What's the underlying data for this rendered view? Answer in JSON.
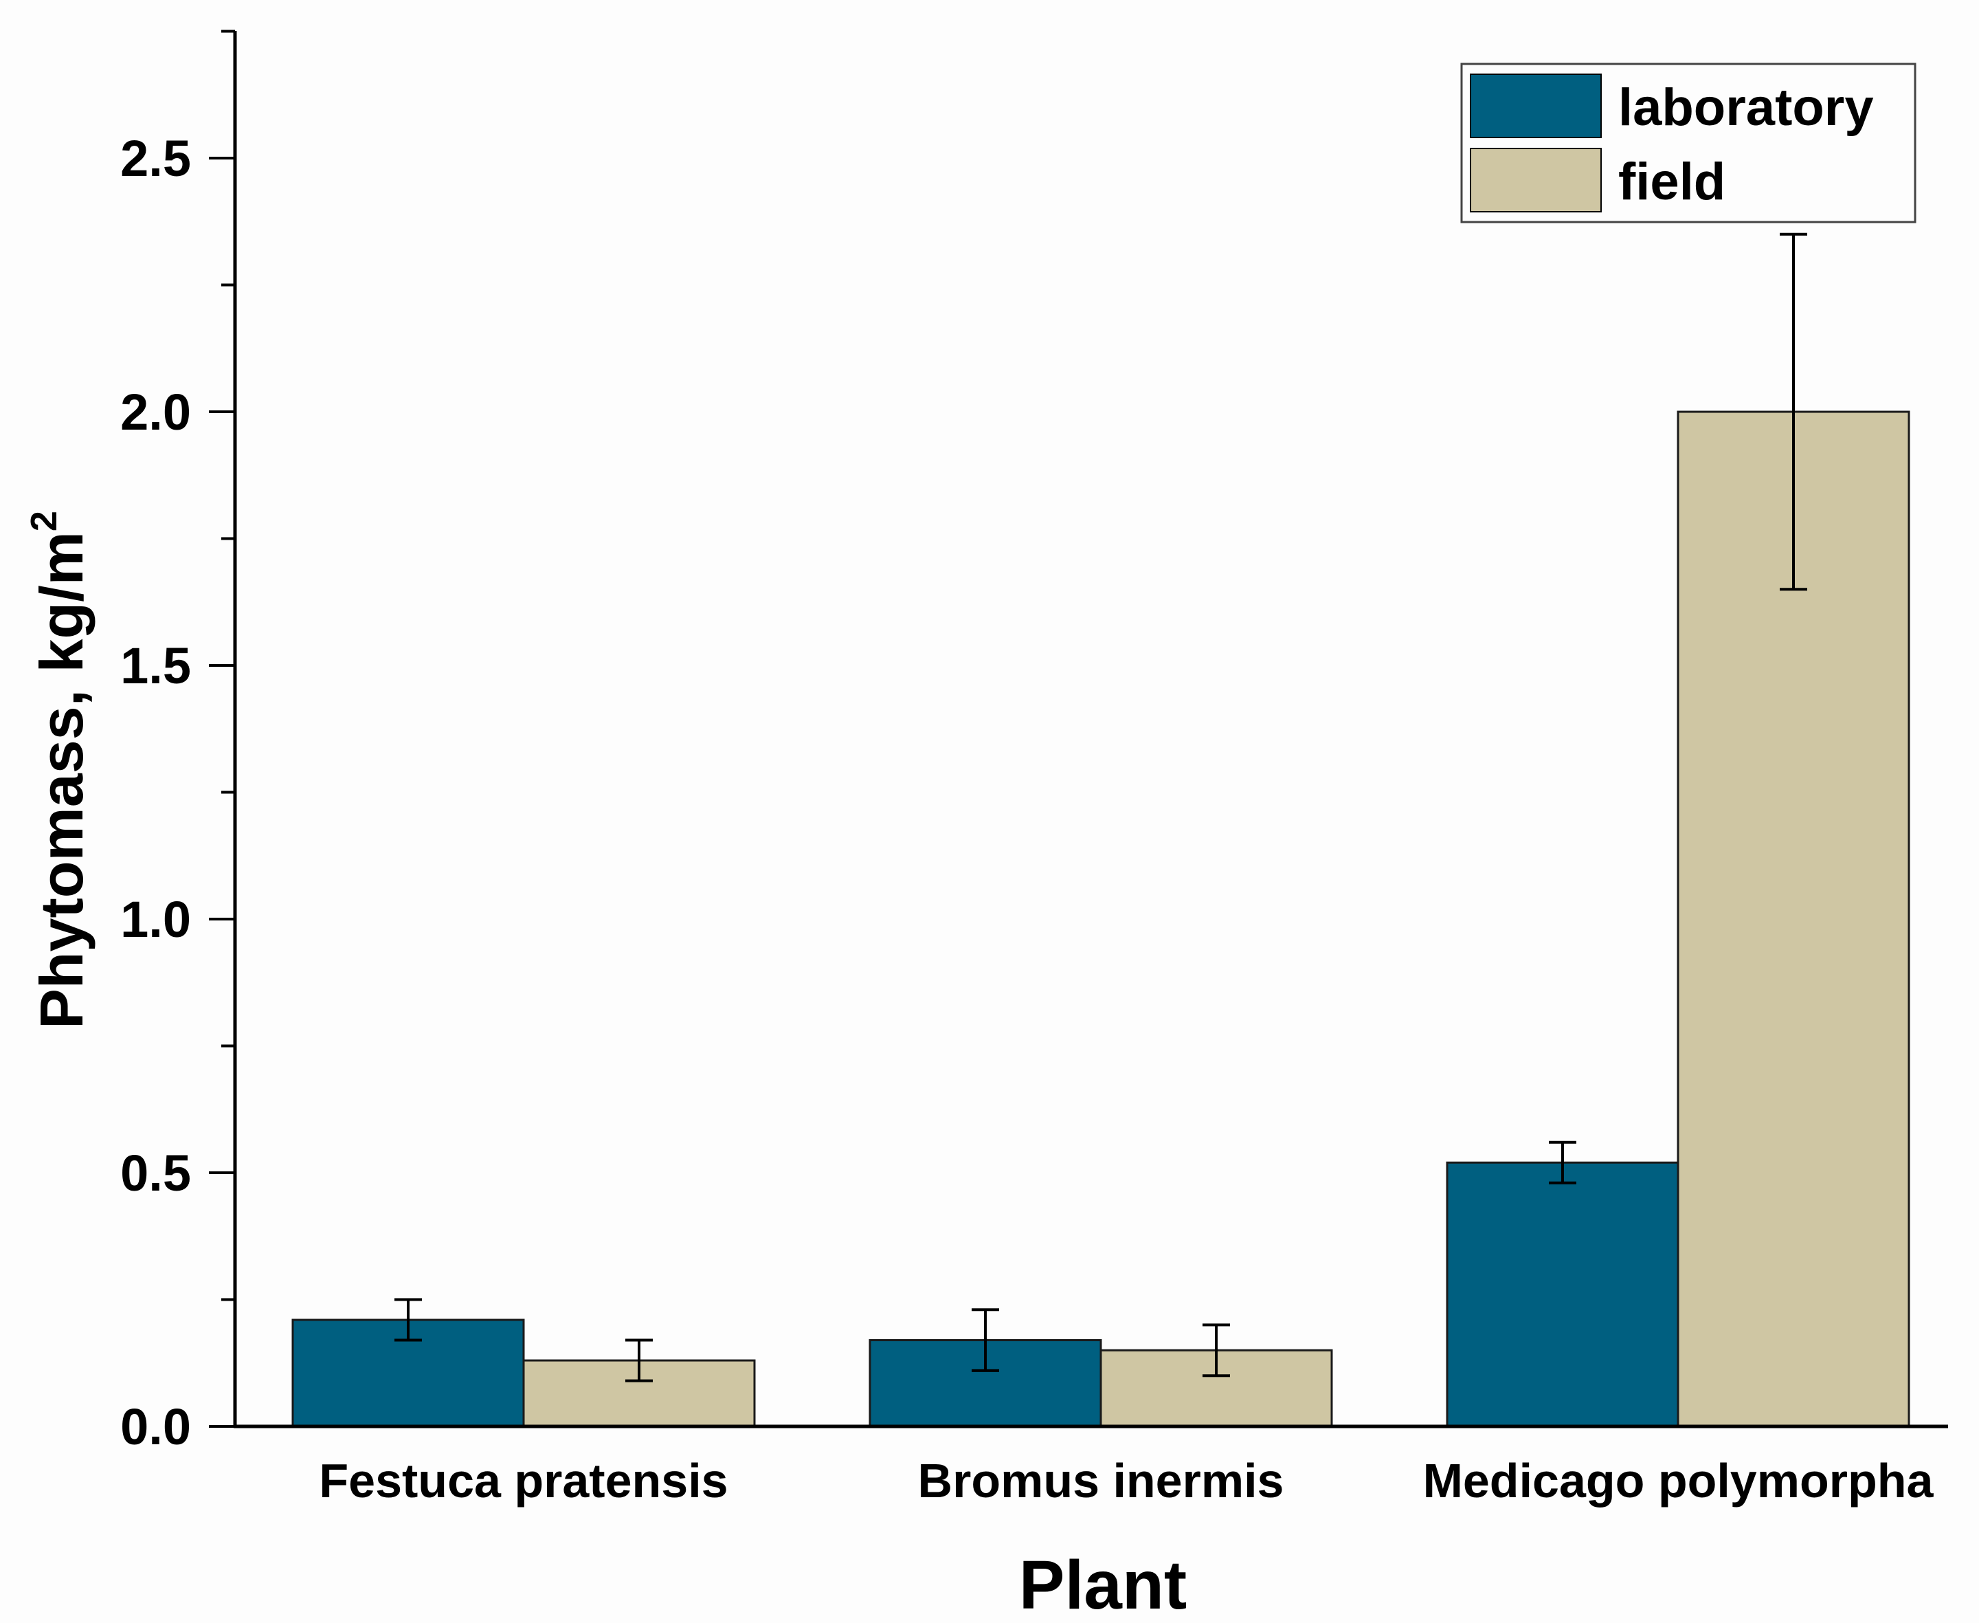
{
  "chart_data": {
    "type": "bar",
    "title": "",
    "xlabel": "Plant",
    "ylabel": "Phytomass, kg/m",
    "ylabel_superscript": "2",
    "categories": [
      "Festuca pratensis",
      "Bromus inermis",
      "Medicago polymorpha"
    ],
    "ylim": [
      0,
      2.75
    ],
    "yticks": [
      "0.0",
      "0.5",
      "1.0",
      "1.5",
      "2.0",
      "2.5"
    ],
    "ytick_values": [
      0,
      0.5,
      1.0,
      1.5,
      2.0,
      2.5
    ],
    "grid": false,
    "legend_position": "top-right",
    "series": [
      {
        "name": "laboratory",
        "color": "#005f80",
        "values": [
          0.21,
          0.17,
          0.52
        ],
        "errors": [
          0.04,
          0.06,
          0.04
        ]
      },
      {
        "name": "field",
        "color": "#cfc6a3",
        "values": [
          0.13,
          0.15,
          2.0
        ],
        "errors": [
          0.04,
          0.05,
          0.35
        ]
      }
    ]
  }
}
